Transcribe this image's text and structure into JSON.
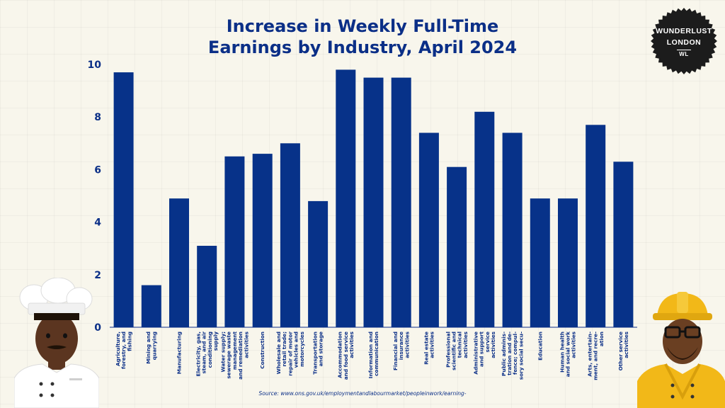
{
  "chart_data": {
    "type": "bar",
    "title": [
      "Increase in Weekly Full-Time",
      "Earnings by Industry, April 2024"
    ],
    "xlabel": "",
    "ylabel": "",
    "ylim": [
      0,
      10
    ],
    "yticks": [
      "0",
      "2",
      "4",
      "6",
      "8",
      "10"
    ],
    "grid": false,
    "categories": [
      [
        "Agriculture,",
        "forestry, and",
        "fishing"
      ],
      [
        "Mining and",
        "quarrying"
      ],
      [
        "Manufacturing"
      ],
      [
        "Electricity, gas,",
        "steam, and air",
        "conditioning",
        "supply"
      ],
      [
        "Water supply;",
        "sewerage waste",
        "management",
        "and remediation",
        "activities"
      ],
      [
        "Construction"
      ],
      [
        "Wholesale and",
        "retail trade;",
        "repair of motor",
        "vehicles and",
        "motorcycles"
      ],
      [
        "Transportation",
        "and storage"
      ],
      [
        "Accommodation",
        "and food service",
        "activities"
      ],
      [
        "Information and",
        "communication"
      ],
      [
        "Financial and",
        "insurance",
        "activities"
      ],
      [
        "Real estate",
        "activities"
      ],
      [
        "Professional",
        "scientific and",
        "technical",
        "activities"
      ],
      [
        "Administrative",
        "and support",
        "service",
        "activities"
      ],
      [
        "Public adminis-",
        "tration and de-",
        "fence; compul-",
        "sory social secu-"
      ],
      [
        "Education"
      ],
      [
        "Human health",
        "and social work",
        "activities"
      ],
      [
        "Arts, entertain-",
        "ment, and recre-",
        "ation"
      ],
      [
        "Other service",
        "activities"
      ]
    ],
    "values": [
      9.7,
      1.6,
      4.9,
      3.1,
      6.5,
      6.6,
      7.0,
      4.8,
      9.8,
      9.5,
      9.5,
      7.4,
      6.1,
      8.2,
      7.4,
      4.9,
      4.9,
      7.7,
      6.3
    ]
  },
  "brand": {
    "line1": "WUNDERLUST",
    "line2": "LONDON",
    "mark": "WL"
  },
  "source": "Source: www.ons.gov.uk/employmentandlabourmarket/peopleinwork/earning-",
  "colors": {
    "bar": "#073289",
    "text": "#0b2f87",
    "background": "#f8f6ec",
    "badge": "#1c1c1c",
    "hat": "#f2b818"
  }
}
